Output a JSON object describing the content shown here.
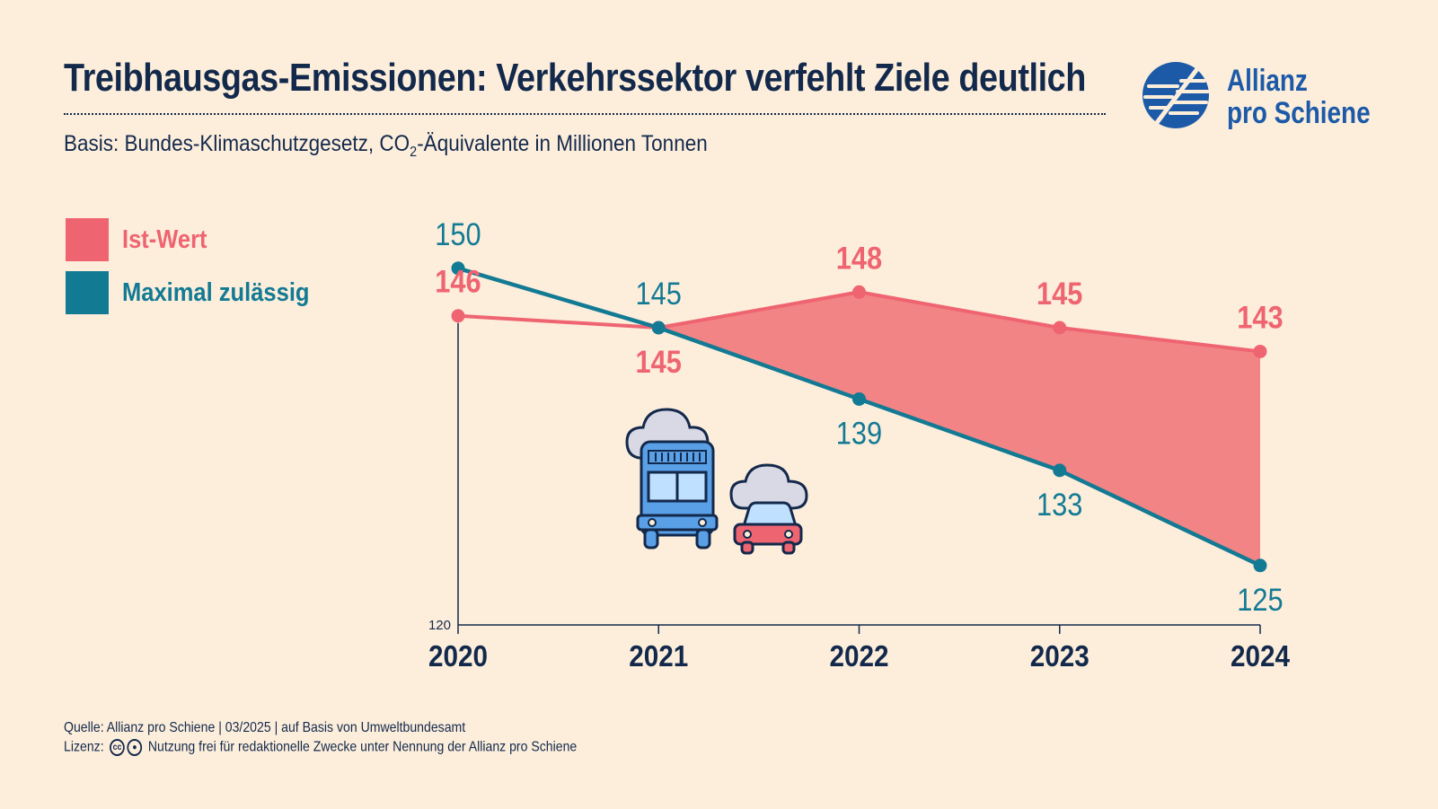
{
  "header": {
    "title": "Treibhausgas-Emissionen: Verkehrssektor verfehlt Ziele deutlich",
    "subtitle_before": "Basis: Bundes-Klimaschutzgesetz, CO",
    "subtitle_sub": "2",
    "subtitle_after": "-Äquivalente in Millionen Tonnen"
  },
  "logo": {
    "line1": "Allianz",
    "line2": "pro Schiene",
    "icon": "allianz-pro-schiene-logo-icon"
  },
  "colors": {
    "actual": "#ef6471",
    "actual_fill": "#f28485",
    "max": "#137a94",
    "text": "#13294b",
    "background": "#fdeedc"
  },
  "legend": [
    {
      "label": "Ist-Wert",
      "color": "#ef6471"
    },
    {
      "label": "Maximal zulässig",
      "color": "#137a94"
    }
  ],
  "chart_data": {
    "type": "line",
    "categories": [
      "2020",
      "2021",
      "2022",
      "2023",
      "2024"
    ],
    "series": [
      {
        "name": "Ist-Wert",
        "values": [
          146,
          145,
          148,
          145,
          143
        ]
      },
      {
        "name": "Maximal zulässig",
        "values": [
          150,
          145,
          139,
          133,
          125
        ]
      }
    ],
    "ylim": [
      120,
      152
    ],
    "y_tick_labels": [
      "120"
    ],
    "shaded_area": "gap between Ist-Wert and Maximal zulässig from 2021 to 2024",
    "illustration": "truck-and-car-exhaust-icon",
    "grid": false
  },
  "footer": {
    "source": "Quelle: Allianz pro Schiene | 03/2025 | auf Basis von Umweltbundesamt",
    "license_label": "Lizenz:",
    "license_text": "Nutzung frei für redaktionelle Zwecke unter Nennung der Allianz pro Schiene",
    "license_icons": [
      "cc-icon",
      "by-icon"
    ]
  }
}
